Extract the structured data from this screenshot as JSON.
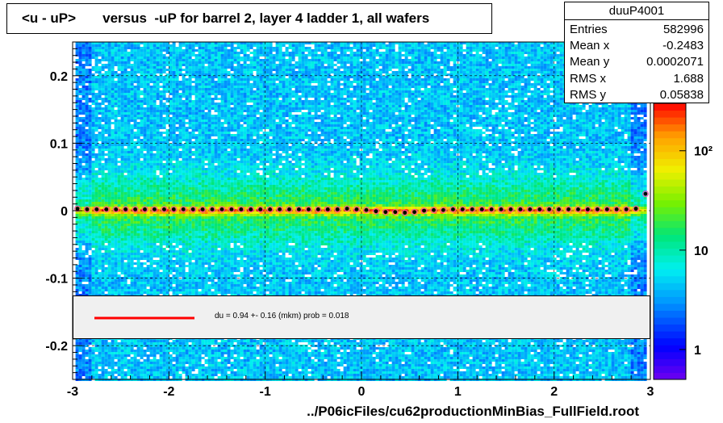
{
  "chart_data": {
    "type": "heatmap",
    "title": "<u - uP>       versus  -uP for barrel 2, layer 4 ladder 1, all wafers",
    "xlabel": "../P06icFiles/cu62productionMinBias_FullField.root",
    "ylabel": "",
    "xlim": [
      -3,
      3
    ],
    "ylim": [
      -0.25,
      0.25
    ],
    "x_ticks": [
      -3,
      -2,
      -1,
      0,
      1,
      2,
      3
    ],
    "x_tick_labels": [
      "-3",
      "-2",
      "-1",
      "0",
      "1",
      "2",
      "3"
    ],
    "y_ticks": [
      -0.2,
      -0.1,
      0,
      0.1,
      0.2
    ],
    "y_tick_labels": [
      "-0.2",
      "-0.1",
      "0",
      "0.1",
      "0.2"
    ],
    "colorbar": {
      "scale": "log",
      "tick_labels": [
        "1",
        "10",
        "10²"
      ],
      "tick_values": [
        1,
        10,
        100
      ],
      "range": [
        0.5,
        300
      ]
    },
    "grid": true,
    "profile_x": [
      -2.95,
      -2.85,
      -2.75,
      -2.65,
      -2.55,
      -2.45,
      -2.35,
      -2.25,
      -2.15,
      -2.05,
      -1.95,
      -1.85,
      -1.75,
      -1.65,
      -1.55,
      -1.45,
      -1.35,
      -1.25,
      -1.15,
      -1.05,
      -0.95,
      -0.85,
      -0.75,
      -0.65,
      -0.55,
      -0.45,
      -0.35,
      -0.25,
      -0.15,
      -0.05,
      0.05,
      0.15,
      0.25,
      0.35,
      0.45,
      0.55,
      0.65,
      0.75,
      0.85,
      0.95,
      1.05,
      1.15,
      1.25,
      1.35,
      1.45,
      1.55,
      1.65,
      1.75,
      1.85,
      1.95,
      2.05,
      2.15,
      2.25,
      2.35,
      2.45,
      2.55,
      2.65,
      2.75,
      2.85,
      2.95
    ],
    "profile_y": [
      0.003,
      0.002,
      0.002,
      0.002,
      0.002,
      0.002,
      0.002,
      0.002,
      0.002,
      0.002,
      0.002,
      0.002,
      0.002,
      0.002,
      0.002,
      0.002,
      0.002,
      0.002,
      0.002,
      0.002,
      0.002,
      0.002,
      0.002,
      0.002,
      0.002,
      0.002,
      0.002,
      0.002,
      0.003,
      0.002,
      0.001,
      -0.001,
      -0.002,
      -0.002,
      -0.003,
      -0.002,
      0.0,
      0.001,
      0.001,
      0.002,
      0.002,
      0.002,
      0.002,
      0.002,
      0.002,
      0.002,
      0.002,
      0.002,
      0.002,
      0.002,
      0.002,
      0.002,
      0.002,
      0.002,
      0.002,
      0.002,
      0.002,
      0.002,
      0.003,
      0.025
    ],
    "fit": {
      "label": "du =    0.94 +-  0.16 (mkm) prob = 0.018",
      "color": "#ff0000"
    },
    "stats": {
      "name": "duuP4001",
      "entries_label": "Entries",
      "entries": "582996",
      "meanx_label": "Mean x",
      "meanx": "-0.2483",
      "meany_label": "Mean y",
      "meany": "0.0002071",
      "rmsx_label": "RMS x",
      "rmsx": "1.688",
      "rmsy_label": "RMS y",
      "rmsy": "0.05838"
    }
  }
}
